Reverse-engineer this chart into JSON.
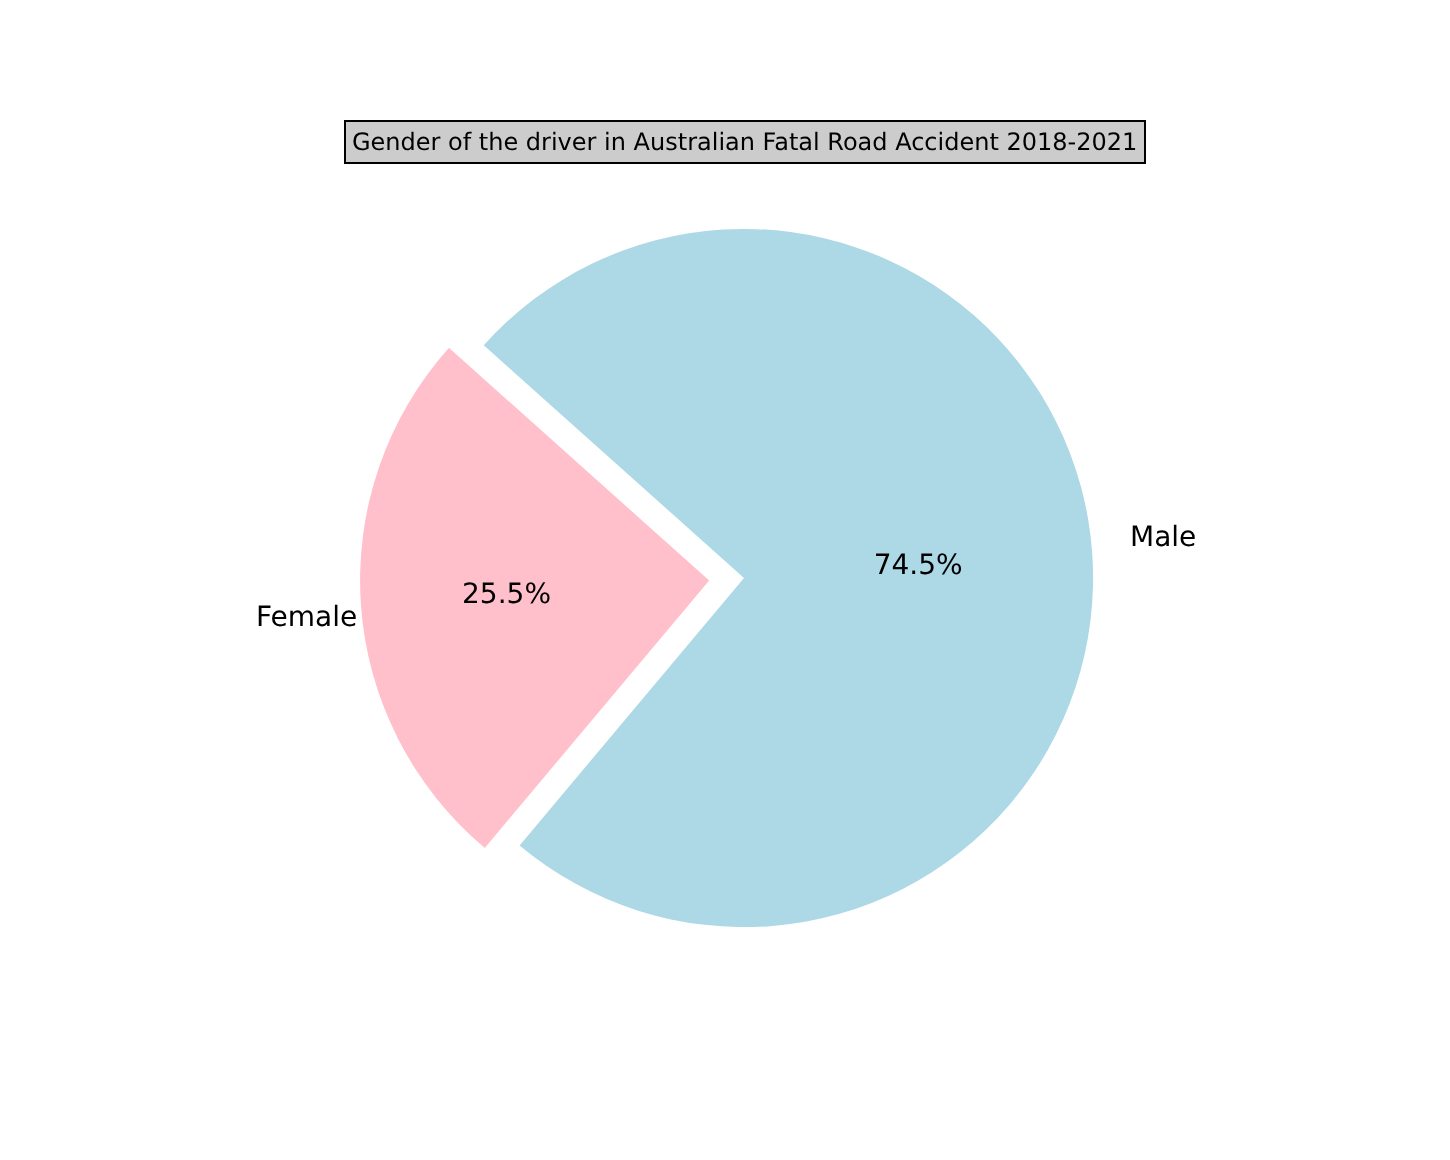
{
  "chart_data": {
    "type": "pie",
    "title": "Gender of the driver in Australian Fatal Road Accident 2018-2021",
    "categories": [
      "Female",
      "Male"
    ],
    "values": [
      25.5,
      74.5
    ],
    "colors": [
      "#ffc0cb",
      "#add8e6"
    ],
    "value_labels": [
      "25.5%",
      "74.5%"
    ]
  }
}
